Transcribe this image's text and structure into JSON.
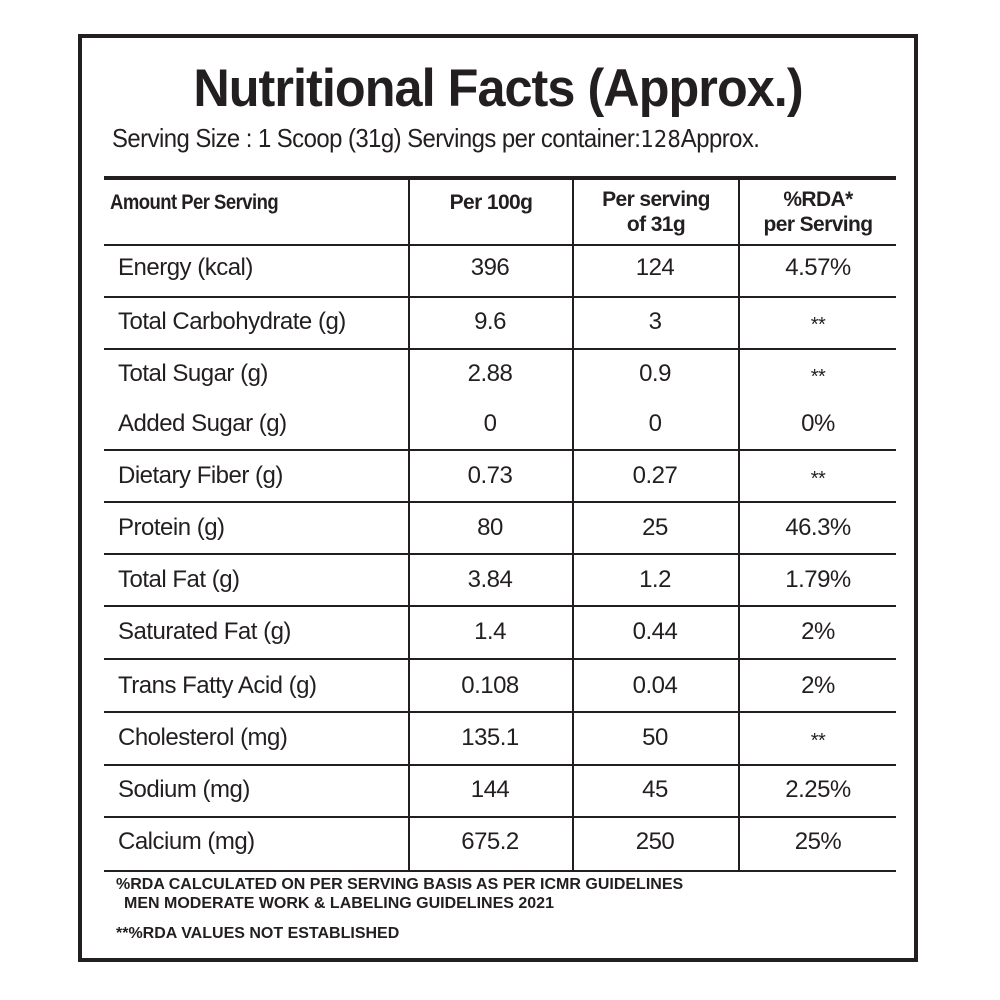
{
  "label": {
    "title": "Nutritional Facts (Approx.)",
    "serving_line_a": "Serving Size : 1 Scoop (31g) Servings per container:",
    "serving_count": "128",
    "serving_line_b": "Approx."
  },
  "table": {
    "headers": {
      "col0": "Amount Per Serving",
      "col1": "Per 100g",
      "col2_line1": "Per serving",
      "col2_line2": "of 31g",
      "col3_line1": "%RDA*",
      "col3_line2": "per Serving"
    },
    "rows": [
      {
        "name": "Energy (kcal)",
        "per100": "396",
        "perServing": "124",
        "rda": "4.57%"
      },
      {
        "name": "Total Carbohydrate (g)",
        "per100": "9.6",
        "perServing": "3",
        "rda": "**"
      },
      {
        "name": "Total Sugar (g)",
        "per100": "2.88",
        "perServing": "0.9",
        "rda": "**"
      },
      {
        "name": "Added Sugar (g)",
        "per100": "0",
        "perServing": "0",
        "rda": "0%"
      },
      {
        "name": "Dietary Fiber (g)",
        "per100": "0.73",
        "perServing": "0.27",
        "rda": "**"
      },
      {
        "name": "Protein (g)",
        "per100": "80",
        "perServing": "25",
        "rda": "46.3%"
      },
      {
        "name": "Total Fat (g)",
        "per100": "3.84",
        "perServing": "1.2",
        "rda": "1.79%"
      },
      {
        "name": "Saturated Fat (g)",
        "per100": "1.4",
        "perServing": "0.44",
        "rda": "2%"
      },
      {
        "name": "Trans Fatty Acid (g)",
        "per100": "0.108",
        "perServing": "0.04",
        "rda": "2%"
      },
      {
        "name": "Cholesterol (mg)",
        "per100": "135.1",
        "perServing": "50",
        "rda": "**"
      },
      {
        "name": "Sodium (mg)",
        "per100": "144",
        "perServing": "45",
        "rda": "2.25%"
      },
      {
        "name": "Calcium (mg)",
        "per100": "675.2",
        "perServing": "250",
        "rda": "25%"
      }
    ]
  },
  "footnotes": {
    "line1": "%RDA CALCULATED ON PER SERVING BASIS AS PER ICMR GUIDELINES",
    "line2": "MEN MODERATE WORK & LABELING GUIDELINES 2021",
    "line3": "**%RDA VALUES NOT ESTABLISHED"
  },
  "colors": {
    "ink": "#231f20",
    "background": "#ffffff"
  }
}
